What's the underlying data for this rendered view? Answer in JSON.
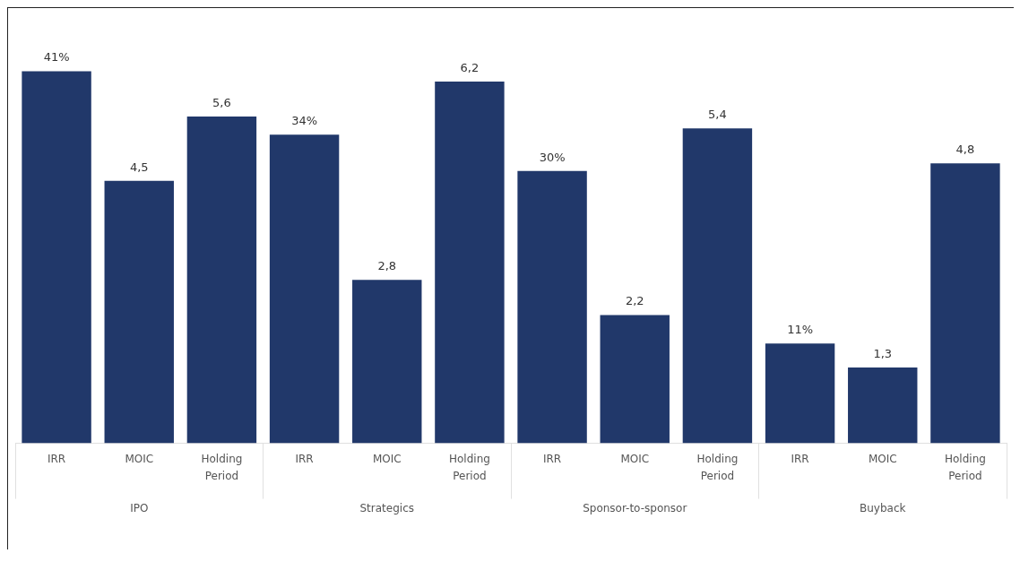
{
  "chart_data": {
    "type": "bar",
    "categories": [
      "IPO",
      "Strategics",
      "Sponsor-to-sponsor",
      "Buyback"
    ],
    "series": [
      {
        "name": "IRR",
        "color": "#21386a",
        "axis": "y2",
        "values": [
          41,
          34,
          30,
          11
        ],
        "value_labels": [
          "41%",
          "34%",
          "30%",
          "11%"
        ]
      },
      {
        "name": "MOIC",
        "color": "#21386a",
        "values": [
          4.5,
          2.8,
          2.2,
          1.3
        ],
        "value_labels": [
          "4,5",
          "2,8",
          "2,2",
          "1,3"
        ]
      },
      {
        "name": "Holding Period",
        "color": "#21386a",
        "values": [
          5.6,
          6.2,
          5.4,
          4.8
        ],
        "value_labels": [
          "5,6",
          "6,2",
          "5,4",
          "4,8"
        ]
      }
    ],
    "grid": false,
    "legend": false
  }
}
